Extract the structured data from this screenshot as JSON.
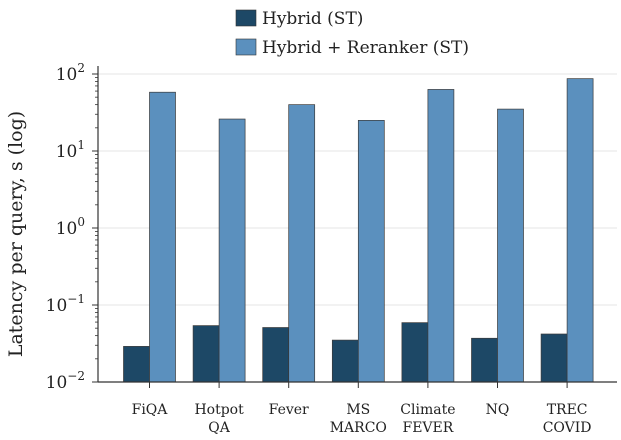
{
  "chart_data": {
    "type": "bar",
    "title": "",
    "xlabel": "",
    "ylabel": "Latency per query, s (log)",
    "yscale": "log",
    "ylim": [
      0.01,
      200
    ],
    "yticks": [
      {
        "value": 0.01,
        "base": "10",
        "exp": "−2"
      },
      {
        "value": 0.1,
        "base": "10",
        "exp": "−1"
      },
      {
        "value": 1,
        "base": "10",
        "exp": "0"
      },
      {
        "value": 10,
        "base": "10",
        "exp": "1"
      },
      {
        "value": 100,
        "base": "10",
        "exp": "2"
      }
    ],
    "grid": "horizontal",
    "legend_position": "top-center",
    "categories": [
      [
        "FiQA"
      ],
      [
        "Hotpot",
        "QA"
      ],
      [
        "Fever"
      ],
      [
        "MS",
        "MARCO"
      ],
      [
        "Climate",
        "FEVER"
      ],
      [
        "NQ"
      ],
      [
        "TREC",
        "COVID"
      ]
    ],
    "series": [
      {
        "name": "Hybrid (ST)",
        "color": "#1d4866",
        "values": [
          0.029,
          0.054,
          0.051,
          0.035,
          0.059,
          0.037,
          0.042
        ]
      },
      {
        "name": "Hybrid + Reranker (ST)",
        "color": "#5b90be",
        "values": [
          58,
          26,
          40,
          25,
          63,
          35,
          87
        ]
      }
    ]
  }
}
